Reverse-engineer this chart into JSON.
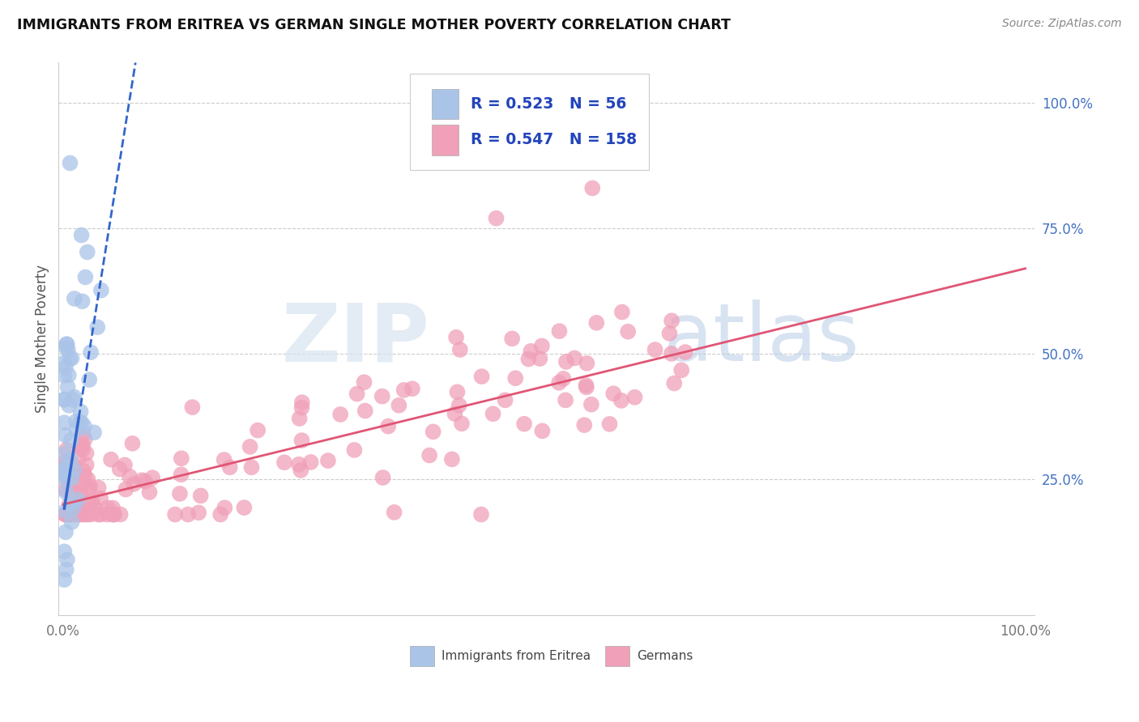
{
  "title": "IMMIGRANTS FROM ERITREA VS GERMAN SINGLE MOTHER POVERTY CORRELATION CHART",
  "source": "Source: ZipAtlas.com",
  "ylabel": "Single Mother Poverty",
  "legend_label1": "Immigrants from Eritrea",
  "legend_label2": "Germans",
  "R1": 0.523,
  "N1": 56,
  "R2": 0.547,
  "N2": 158,
  "color_eritrea": "#aac4e8",
  "color_eritrea_line": "#3366cc",
  "color_german": "#f0a0b8",
  "color_german_line": "#e05575",
  "ytick_labels": [
    "25.0%",
    "50.0%",
    "75.0%",
    "100.0%"
  ],
  "ytick_positions": [
    0.25,
    0.5,
    0.75,
    1.0
  ],
  "background": "#ffffff",
  "grid_color": "#cccccc",
  "ytick_color": "#4472c4"
}
